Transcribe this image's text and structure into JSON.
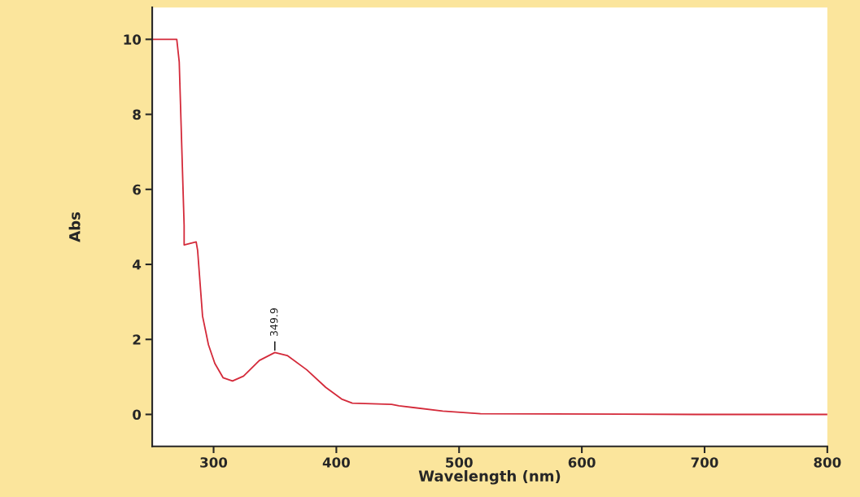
{
  "chart_data": {
    "type": "line",
    "xlabel": "Wavelength (nm)",
    "ylabel": "Abs",
    "x": [
      250,
      270,
      272,
      276,
      276,
      285.8,
      287,
      291,
      295.8,
      301,
      307.7,
      315.4,
      324.4,
      337.3,
      349.9,
      360,
      375.9,
      391.4,
      404.3,
      413,
      445,
      451,
      486.7,
      517.5,
      693,
      800
    ],
    "series": [
      {
        "color": "#d42a3a",
        "values": [
          10,
          10,
          9.4,
          5.03,
          4.52,
          4.6,
          4.37,
          2.62,
          1.86,
          1.36,
          0.98,
          0.89,
          1.02,
          1.44,
          1.65,
          1.57,
          1.19,
          0.72,
          0.41,
          0.3,
          0.27,
          0.23,
          0.09,
          0.02,
          0.0,
          0.0
        ]
      }
    ],
    "xlim": [
      250,
      800
    ],
    "xticks": [
      300,
      400,
      500,
      600,
      700,
      800
    ],
    "ylim": [
      -0.85,
      10.85
    ],
    "yticks": [
      0,
      2,
      4,
      6,
      8,
      10
    ],
    "grid": false,
    "legend": false,
    "marker": "none",
    "line_style": "solid",
    "annotations": [
      {
        "text": "349.9",
        "x": 349.9,
        "y": 1.65
      }
    ]
  }
}
